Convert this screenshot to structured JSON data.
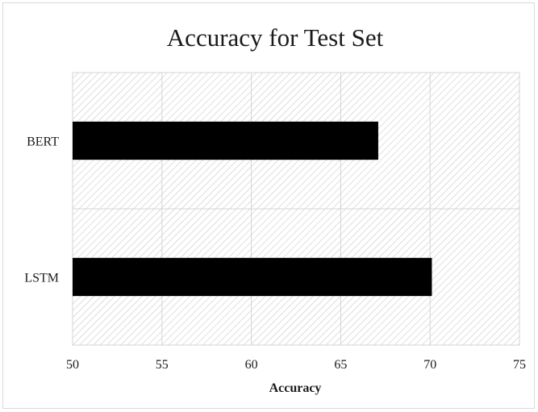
{
  "chart_data": {
    "type": "bar",
    "orientation": "horizontal",
    "title": "Accuracy for Test Set",
    "xlabel": "Accuracy",
    "ylabel": "",
    "categories": [
      "BERT",
      "LSTM"
    ],
    "values": [
      67.1,
      70.1
    ],
    "xlim": [
      50,
      75
    ],
    "xticks": [
      "50",
      "55",
      "60",
      "65",
      "70",
      "75"
    ],
    "grid": true,
    "legend": "none",
    "bar_color": "#000000",
    "background_pattern": "diagonal-hatch"
  }
}
